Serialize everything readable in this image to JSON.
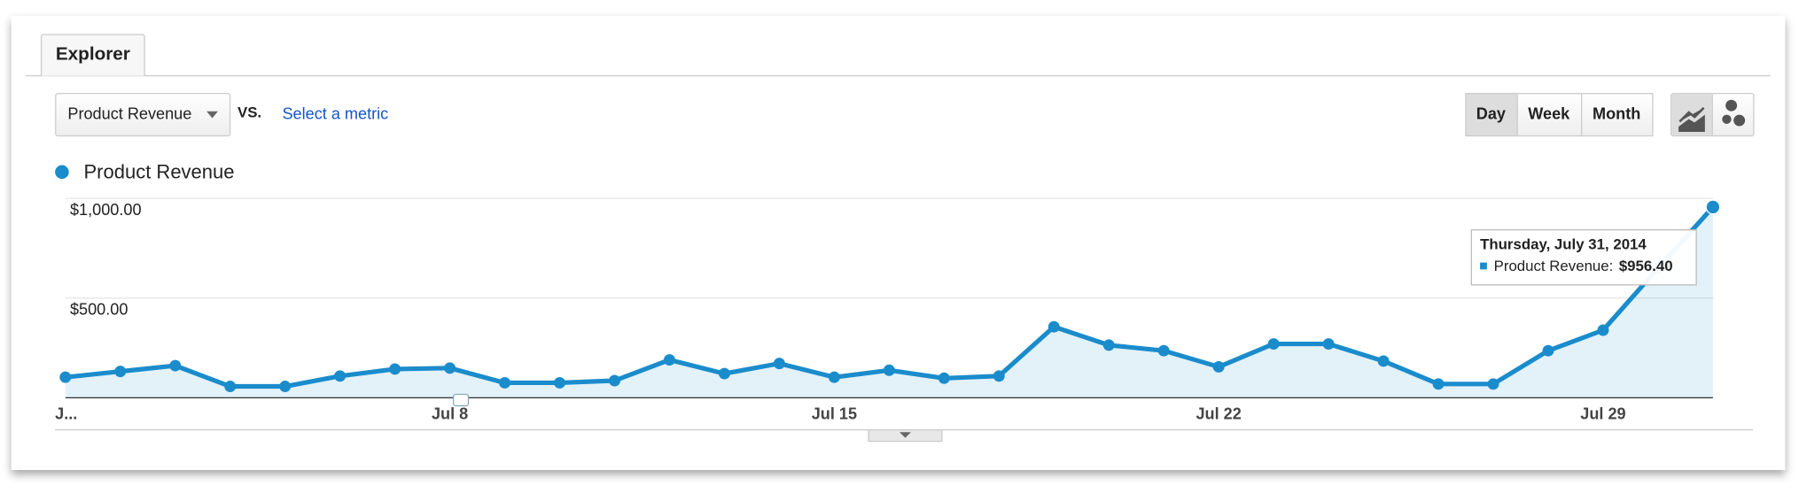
{
  "ui": {
    "tab": "Explorer",
    "metric_dropdown": "Product Revenue",
    "vs": "VS.",
    "select_metric": "Select a metric",
    "periods": [
      "Day",
      "Week",
      "Month"
    ]
  },
  "chart_data": {
    "type": "line",
    "categories": [
      "J...",
      null,
      null,
      null,
      null,
      null,
      null,
      "Jul 8",
      null,
      null,
      null,
      null,
      null,
      null,
      "Jul 15",
      null,
      null,
      null,
      null,
      null,
      null,
      "Jul 22",
      null,
      null,
      null,
      null,
      null,
      null,
      "Jul 29",
      null,
      null
    ],
    "series": [
      {
        "name": "Product Revenue",
        "color": "#1a8ccc",
        "values": [
          103,
          132,
          161,
          57,
          57,
          109,
          144,
          149,
          75,
          75,
          86,
          190,
          121,
          172,
          103,
          138,
          98,
          109,
          356,
          264,
          236,
          155,
          270,
          270,
          184,
          69,
          69,
          236,
          339,
          650,
          956.4
        ],
        "value_labels": [
          null,
          null,
          null,
          null,
          null,
          null,
          null,
          null,
          null,
          null,
          null,
          null,
          null,
          null,
          null,
          null,
          null,
          null,
          null,
          null,
          null,
          null,
          null,
          null,
          null,
          null,
          null,
          null,
          null,
          null,
          "$956.40"
        ]
      }
    ],
    "ylim": [
      0,
      1000
    ],
    "yticks": [
      {
        "value": 500,
        "label": "$500.00"
      },
      {
        "value": 1000,
        "label": "$1,000.00"
      }
    ],
    "grid": true,
    "tooltip": {
      "date": "Thursday, July 31, 2014",
      "series_label": "Product Revenue:"
    }
  }
}
